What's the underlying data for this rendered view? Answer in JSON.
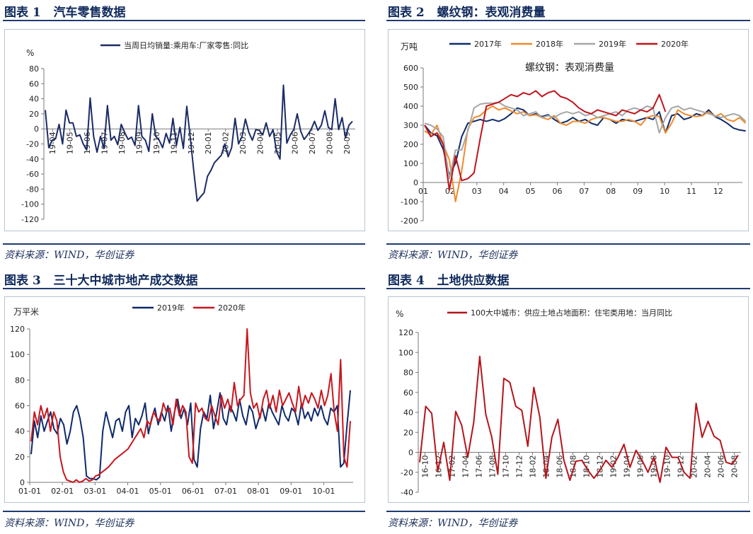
{
  "panels": [
    {
      "title_num": "图表 1",
      "title_text": "汽车零售数据",
      "source": "资料来源：WIND，华创证券",
      "chart_data": {
        "type": "line",
        "title": "",
        "xlabel": "",
        "ylabel": "%",
        "ylim": [
          -120,
          80
        ],
        "yticks": [
          80,
          60,
          40,
          20,
          0,
          -20,
          -40,
          -60,
          -80,
          -100,
          -120
        ],
        "x_tick_labels": [
          "19-04",
          "19-05",
          "19-06",
          "19-07",
          "19-08",
          "19-09",
          "19-10",
          "19-11",
          "19-12",
          "20-01",
          "20-02",
          "20-03",
          "20-04",
          "20-05",
          "20-06",
          "20-07",
          "20-08",
          "20-09"
        ],
        "grid": false,
        "legend_position": "top",
        "series": [
          {
            "name": "当周日均销量:乘用车:厂家零售:同比",
            "color": "#1a2b66",
            "values": [
              25,
              -25,
              -15,
              -13,
              6,
              -20,
              25,
              8,
              8,
              -10,
              -8,
              -20,
              -28,
              41,
              -10,
              -31,
              -10,
              -26,
              31,
              -15,
              -10,
              -21,
              6,
              -5,
              -14,
              -11,
              -22,
              31,
              -10,
              -15,
              -30,
              20,
              -10,
              -15,
              -25,
              -6,
              -19,
              14,
              -22,
              2,
              -26,
              30,
              -11,
              -55,
              -96,
              -90,
              -85,
              -63,
              -55,
              -45,
              -40,
              -35,
              -20,
              -37,
              -25,
              14,
              -20,
              -10,
              13,
              -5,
              -15,
              -1,
              -2,
              -8,
              8,
              -10,
              -1,
              -30,
              -40,
              58,
              -19,
              -8,
              -1,
              20,
              -3,
              -14,
              -8,
              -1,
              10,
              -2,
              5,
              24,
              2,
              -1,
              40,
              -1,
              15,
              -12,
              5,
              10
            ]
          }
        ]
      }
    },
    {
      "title_num": "图表 2",
      "title_text": "螺纹钢：表观消费量",
      "source": "资料来源：WIND，华创证券",
      "chart_data": {
        "type": "line",
        "title": "螺纹钢：表观消费量",
        "xlabel": "",
        "ylabel": "万吨",
        "ylim": [
          -200,
          600
        ],
        "yticks": [
          600,
          500,
          400,
          300,
          200,
          100,
          0,
          -100,
          -200
        ],
        "x_tick_labels": [
          "01",
          "02",
          "03",
          "04",
          "05",
          "06",
          "07",
          "08",
          "09",
          "10",
          "11",
          "12"
        ],
        "grid": false,
        "legend_position": "top",
        "series": [
          {
            "name": "2017年",
            "color": "#0e2a6b",
            "values": [
              300,
              260,
              245,
              175,
              40,
              100,
              240,
              310,
              320,
              330,
              320,
              330,
              320,
              335,
              360,
              390,
              380,
              350,
              360,
              345,
              355,
              330,
              310,
              320,
              340,
              320,
              330,
              310,
              300,
              340,
              330,
              310,
              330,
              325,
              320,
              330,
              340,
              330,
              370,
              260,
              350,
              360,
              330,
              340,
              360,
              350,
              380,
              345,
              330,
              310,
              285,
              275,
              270
            ]
          },
          {
            "name": "2018年",
            "color": "#f08a2c",
            "values": [
              270,
              250,
              300,
              200,
              120,
              -100,
              60,
              280,
              340,
              350,
              380,
              400,
              380,
              390,
              375,
              360,
              370,
              350,
              355,
              340,
              330,
              350,
              310,
              300,
              320,
              320,
              310,
              330,
              340,
              340,
              330,
              320,
              320,
              330,
              320,
              300,
              340,
              350,
              345,
              260,
              310,
              380,
              360,
              350,
              345,
              350,
              370,
              345,
              360,
              330,
              320,
              340,
              310
            ]
          },
          {
            "name": "2019年",
            "color": "#a6a6a6",
            "values": [
              310,
              300,
              280,
              240,
              20,
              170,
              170,
              270,
              390,
              410,
              415,
              415,
              420,
              400,
              390,
              380,
              350,
              360,
              370,
              340,
              350,
              340,
              360,
              370,
              360,
              370,
              350,
              360,
              340,
              350,
              360,
              370,
              350,
              380,
              390,
              380,
              400,
              390,
              260,
              340,
              390,
              400,
              380,
              390,
              380,
              370,
              360,
              350,
              340,
              350,
              360,
              350,
              320
            ]
          },
          {
            "name": "2020年",
            "color": "#c0141b",
            "values": [
              300,
              240,
              260,
              200,
              -40,
              140,
              10,
              20,
              50,
              230,
              400,
              410,
              420,
              440,
              460,
              450,
              470,
              460,
              480,
              450,
              470,
              480,
              450,
              440,
              420,
              390,
              370,
              360,
              380,
              370,
              360,
              350,
              380,
              370,
              360,
              380,
              370,
              390,
              460,
              370
            ]
          }
        ]
      }
    },
    {
      "title_num": "图表 3",
      "title_text": "三十大中城市地产成交数据",
      "source": "资料来源：WIND，华创证券",
      "chart_data": {
        "type": "line",
        "title": "",
        "xlabel": "",
        "ylabel": "万平米",
        "ylim": [
          0,
          120
        ],
        "yticks": [
          120,
          100,
          80,
          60,
          40,
          20,
          0
        ],
        "x_tick_labels": [
          "01-01",
          "02-01",
          "03-01",
          "04-01",
          "05-01",
          "06-01",
          "07-01",
          "08-01",
          "09-01",
          "10-01"
        ],
        "grid": false,
        "legend_position": "top",
        "series": [
          {
            "name": "2019年",
            "color": "#0e2a6b",
            "values": [
              22,
              48,
              35,
              52,
              40,
              48,
              55,
              42,
              38,
              50,
              45,
              30,
              40,
              55,
              60,
              50,
              35,
              5,
              3,
              3,
              2,
              4,
              40,
              55,
              45,
              35,
              48,
              50,
              40,
              55,
              60,
              35,
              50,
              45,
              52,
              62,
              38,
              50,
              58,
              45,
              55,
              48,
              60,
              40,
              55,
              65,
              50,
              58,
              45,
              62,
              18,
              12,
              42,
              55,
              50,
              68,
              42,
              55,
              70,
              50,
              45,
              60,
              55,
              48,
              65,
              52,
              45,
              60,
              55,
              42,
              50,
              58,
              48,
              62,
              55,
              50,
              45,
              60,
              52,
              48,
              58,
              55,
              45,
              62,
              50,
              55,
              48,
              58,
              52,
              60,
              50,
              45,
              58,
              55,
              60,
              12,
              15,
              45,
              72
            ]
          },
          {
            "name": "2020年",
            "color": "#c8161d",
            "values": [
              32,
              55,
              45,
              60,
              50,
              58,
              40,
              55,
              48,
              20,
              8,
              2,
              1,
              0,
              2,
              0,
              1,
              3,
              1,
              2,
              5,
              6,
              8,
              10,
              12,
              15,
              18,
              20,
              22,
              24,
              26,
              30,
              34,
              38,
              42,
              35,
              48,
              45,
              55,
              50,
              48,
              62,
              55,
              58,
              45,
              65,
              52,
              60,
              55,
              20,
              15,
              62,
              55,
              58,
              50,
              48,
              60,
              52,
              45,
              68,
              58,
              65,
              55,
              78,
              60,
              65,
              68,
              120,
              70,
              58,
              62,
              50,
              65,
              72,
              58,
              68,
              55,
              72,
              60,
              65,
              70,
              62,
              55,
              75,
              58,
              68,
              62,
              70,
              65,
              58,
              72,
              60,
              68,
              85,
              55,
              40,
              96,
              20,
              12,
              48
            ]
          }
        ]
      }
    },
    {
      "title_num": "图表 4",
      "title_text": "土地供应数据",
      "source": "资料来源：WIND，华创证券",
      "chart_data": {
        "type": "line",
        "title": "",
        "xlabel": "",
        "ylabel": "%",
        "ylim": [
          -40,
          120
        ],
        "yticks": [
          120,
          100,
          80,
          60,
          40,
          20,
          0,
          -20,
          -40
        ],
        "x_tick_labels": [
          "16-10",
          "16-12",
          "17-02",
          "17-04",
          "17-06",
          "17-08",
          "17-10",
          "17-12",
          "18-02",
          "18-04",
          "18-06",
          "18-08",
          "18-10",
          "18-12",
          "19-02",
          "19-04",
          "19-06",
          "19-08",
          "19-10",
          "19-12",
          "20-02",
          "20-04",
          "20-06",
          "20-08"
        ],
        "grid": false,
        "legend_position": "top",
        "series": [
          {
            "name": "100大中城市：供应土地占地面积：住宅类用地：当月同比",
            "color": "#b5141b",
            "values": [
              -10,
              46,
              39,
              -19,
              10,
              -28,
              41,
              27,
              -5,
              30,
              96,
              38,
              15,
              -22,
              74,
              70,
              46,
              42,
              6,
              65,
              35,
              -26,
              15,
              33,
              -8,
              -28,
              -9,
              -8,
              -18,
              -26,
              -18,
              -8,
              -15,
              -5,
              8,
              -15,
              2,
              -8,
              -20,
              -5,
              -30,
              5,
              -5,
              -5,
              -20,
              -26,
              49,
              15,
              31,
              16,
              12,
              -10,
              -12,
              -3
            ]
          }
        ]
      }
    }
  ]
}
